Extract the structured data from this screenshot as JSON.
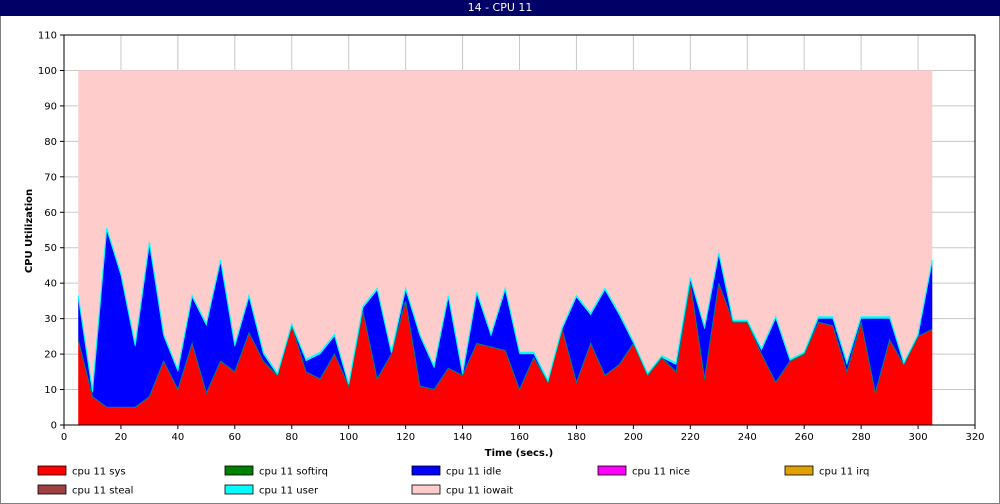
{
  "window": {
    "title": "14 - CPU 11"
  },
  "chart_data": {
    "type": "area",
    "title": "14 - CPU 11",
    "xlabel": "Time (secs.)",
    "ylabel": "CPU Utilization",
    "xlim": [
      0,
      320
    ],
    "ylim": [
      0,
      110
    ],
    "x_ticks": [
      0,
      20,
      40,
      60,
      80,
      100,
      120,
      140,
      160,
      180,
      200,
      220,
      240,
      260,
      280,
      300,
      320
    ],
    "y_ticks": [
      0,
      10,
      20,
      30,
      40,
      50,
      60,
      70,
      80,
      90,
      100,
      110
    ],
    "grid": true,
    "stacked": true,
    "x": [
      5,
      10,
      15,
      20,
      25,
      30,
      35,
      40,
      45,
      50,
      55,
      60,
      65,
      70,
      75,
      80,
      85,
      90,
      95,
      100,
      105,
      110,
      115,
      120,
      125,
      130,
      135,
      140,
      145,
      150,
      155,
      160,
      165,
      170,
      175,
      180,
      185,
      190,
      195,
      200,
      205,
      210,
      215,
      220,
      225,
      230,
      235,
      240,
      245,
      250,
      255,
      260,
      265,
      270,
      275,
      280,
      285,
      290,
      295,
      300,
      305
    ],
    "series": [
      {
        "name": "cpu 11 sys",
        "color": "#ff0000",
        "values": [
          24,
          8,
          5,
          5,
          5,
          8,
          18,
          10,
          23,
          9,
          18,
          15,
          26,
          18,
          14,
          28,
          15,
          13,
          20,
          11,
          32,
          13,
          20,
          35,
          11,
          10,
          16,
          14,
          23,
          22,
          21,
          10,
          19,
          12,
          27,
          12,
          23,
          14,
          17,
          23,
          14,
          19,
          15,
          40,
          13,
          40,
          29,
          29,
          20,
          12,
          18,
          20,
          29,
          28,
          15,
          29,
          9,
          24,
          17,
          25,
          27
        ]
      },
      {
        "name": "cpu 11 softirq",
        "color": "#008000",
        "values": [
          0,
          0,
          0,
          0,
          0,
          0,
          0,
          0,
          0,
          0,
          0,
          0,
          0,
          0,
          0,
          0,
          0,
          0,
          0,
          0,
          0,
          0,
          0,
          0,
          0,
          0,
          0,
          0,
          0,
          0,
          0,
          0,
          0,
          0,
          0,
          0,
          0,
          0,
          0,
          0,
          0,
          0,
          0,
          0,
          0,
          0,
          0,
          0,
          0,
          0,
          0,
          0,
          0,
          0,
          0,
          0,
          0,
          0,
          0,
          0,
          0
        ]
      },
      {
        "name": "cpu 11 idle",
        "color": "#0000ff",
        "values": [
          12,
          1,
          50,
          37,
          17,
          43,
          7,
          5,
          13,
          19,
          28,
          7,
          10,
          2,
          0,
          0,
          3,
          7,
          5,
          0,
          1,
          25,
          0,
          3,
          14,
          6,
          20,
          0,
          14,
          3,
          17,
          10,
          1,
          0,
          0,
          24,
          8,
          24,
          14,
          0,
          0,
          0,
          2,
          1,
          14,
          8,
          0,
          0,
          1,
          18,
          0,
          0,
          1,
          2,
          2,
          1,
          21,
          6,
          0,
          0,
          19
        ]
      },
      {
        "name": "cpu 11 nice",
        "color": "#ff00ff",
        "values": [
          0,
          0,
          0,
          0,
          0,
          0,
          0,
          0,
          0,
          0,
          0,
          0,
          0,
          0,
          0,
          0,
          0,
          0,
          0,
          0,
          0,
          0,
          0,
          0,
          0,
          0,
          0,
          0,
          0,
          0,
          0,
          0,
          0,
          0,
          0,
          0,
          0,
          0,
          0,
          0,
          0,
          0,
          0,
          0,
          0,
          0,
          0,
          0,
          0,
          0,
          0,
          0,
          0,
          0,
          0,
          0,
          0,
          0,
          0,
          0,
          0
        ]
      },
      {
        "name": "cpu 11 irq",
        "color": "#e0a000",
        "values": [
          0,
          0,
          0,
          0,
          0,
          0,
          0,
          0,
          0,
          0,
          0,
          0,
          0,
          0,
          0,
          0,
          0,
          0,
          0,
          0,
          0,
          0,
          0,
          0,
          0,
          0,
          0,
          0,
          0,
          0,
          0,
          0,
          0,
          0,
          0,
          0,
          0,
          0,
          0,
          0,
          0,
          0,
          0,
          0,
          0,
          0,
          0,
          0,
          0,
          0,
          0,
          0,
          0,
          0,
          0,
          0,
          0,
          0,
          0,
          0,
          0
        ]
      },
      {
        "name": "cpu 11 steal",
        "color": "#a04040",
        "values": [
          0,
          0,
          0,
          0,
          0,
          0,
          0,
          0,
          0,
          0,
          0,
          0,
          0,
          0,
          0,
          0,
          0,
          0,
          0,
          0,
          0,
          0,
          0,
          0,
          0,
          0,
          0,
          0,
          0,
          0,
          0,
          0,
          0,
          0,
          0,
          0,
          0,
          0,
          0,
          0,
          0,
          0,
          0,
          0,
          0,
          0,
          0,
          0,
          0,
          0,
          0,
          0,
          0,
          0,
          0,
          0,
          0,
          0,
          0,
          0,
          0
        ]
      },
      {
        "name": "cpu 11 user",
        "color": "#00ffff",
        "values": [
          0.5,
          0.5,
          0.5,
          0.5,
          0.5,
          0.5,
          0.5,
          0.5,
          0.5,
          0.5,
          0.5,
          0.5,
          0.5,
          0.5,
          0.5,
          0.5,
          0.5,
          0.5,
          0.5,
          0.5,
          0.5,
          0.5,
          0.5,
          0.5,
          0.5,
          0.5,
          0.5,
          0.5,
          0.5,
          0.5,
          0.5,
          0.5,
          0.5,
          0.5,
          0.5,
          0.5,
          0.5,
          0.5,
          0.5,
          0.5,
          0.5,
          0.5,
          0.5,
          0.5,
          0.5,
          0.5,
          0.5,
          0.5,
          0.5,
          0.5,
          0.5,
          0.5,
          0.5,
          0.5,
          0.5,
          0.5,
          0.5,
          0.5,
          0.5,
          0.5,
          0.5
        ]
      },
      {
        "name": "cpu 11 iowait",
        "color": "#ffcccc",
        "values": "remainder-to-100"
      }
    ],
    "legend": {
      "placement": "bottom",
      "entries": [
        {
          "label": "cpu 11 sys",
          "color": "#ff0000"
        },
        {
          "label": "cpu 11 softirq",
          "color": "#008000"
        },
        {
          "label": "cpu 11 idle",
          "color": "#0000ff"
        },
        {
          "label": "cpu 11 nice",
          "color": "#ff00ff"
        },
        {
          "label": "cpu 11 irq",
          "color": "#e0a000"
        },
        {
          "label": "cpu 11 steal",
          "color": "#a04040"
        },
        {
          "label": "cpu 11 user",
          "color": "#00ffff"
        },
        {
          "label": "cpu 11 iowait",
          "color": "#ffcccc"
        }
      ]
    }
  }
}
